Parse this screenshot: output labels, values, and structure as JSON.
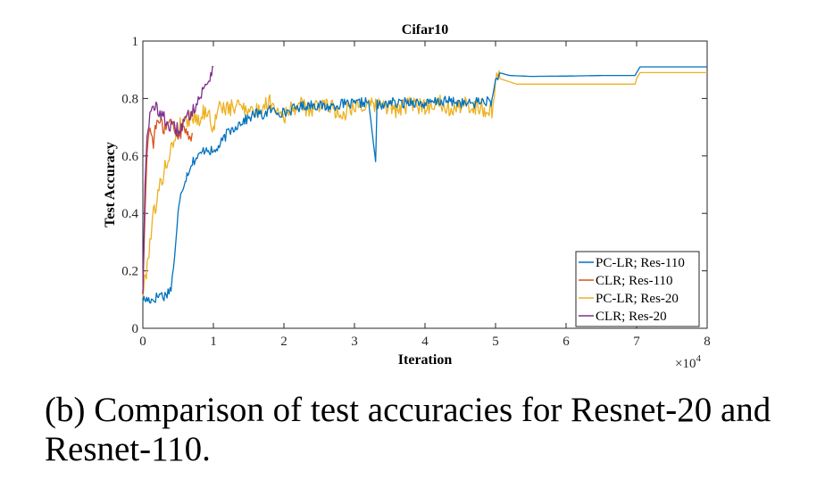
{
  "caption": {
    "line1": "(b) Comparison of test accuracies for Resnet-20 and",
    "line2": "Resnet-110."
  },
  "chart_data": {
    "type": "line",
    "title": "Cifar10",
    "xlabel": "Iteration",
    "ylabel": "Test Accuracy",
    "x_multiplier_label": "×10",
    "x_multiplier_exponent": "4",
    "xlim": [
      0,
      8
    ],
    "ylim": [
      0,
      1
    ],
    "xticks": [
      "0",
      "1",
      "2",
      "3",
      "4",
      "5",
      "6",
      "7",
      "8"
    ],
    "yticks": [
      "0",
      "0.2",
      "0.4",
      "0.6",
      "0.8",
      "1"
    ],
    "grid": false,
    "legend_position": "bottom-right",
    "series": [
      {
        "name": "PC-LR; Res-110",
        "color": "#0072BD",
        "x": [
          0,
          0.15,
          0.25,
          0.3,
          0.4,
          0.45,
          0.5,
          0.55,
          0.6,
          0.65,
          0.7,
          0.8,
          0.9,
          1.0,
          1.1,
          1.2,
          1.3,
          1.4,
          1.5,
          1.6,
          1.7,
          1.8,
          2.0,
          2.2,
          2.4,
          2.6,
          2.8,
          3.0,
          3.2,
          3.3,
          3.32,
          3.4,
          3.5,
          3.6,
          3.8,
          4.0,
          4.2,
          4.4,
          4.6,
          4.8,
          4.95,
          5.0,
          5.05,
          5.2,
          5.5,
          6.0,
          6.5,
          6.98,
          7.0,
          7.05,
          7.3,
          8.0
        ],
        "y": [
          0.1,
          0.1,
          0.12,
          0.11,
          0.14,
          0.25,
          0.4,
          0.48,
          0.52,
          0.55,
          0.58,
          0.6,
          0.63,
          0.61,
          0.64,
          0.68,
          0.7,
          0.72,
          0.73,
          0.75,
          0.74,
          0.76,
          0.75,
          0.77,
          0.78,
          0.77,
          0.78,
          0.78,
          0.79,
          0.58,
          0.78,
          0.77,
          0.79,
          0.78,
          0.79,
          0.78,
          0.79,
          0.79,
          0.78,
          0.79,
          0.79,
          0.86,
          0.89,
          0.88,
          0.877,
          0.878,
          0.88,
          0.88,
          0.89,
          0.91,
          0.91,
          0.91
        ]
      },
      {
        "name": "CLR; Res-110",
        "color": "#D95319",
        "x": [
          0,
          0.03,
          0.06,
          0.1,
          0.15,
          0.2,
          0.3,
          0.4,
          0.5,
          0.55,
          0.6,
          0.65,
          0.7
        ],
        "y": [
          0.12,
          0.4,
          0.62,
          0.7,
          0.65,
          0.72,
          0.7,
          0.72,
          0.66,
          0.69,
          0.7,
          0.66,
          0.68
        ]
      },
      {
        "name": "PC-LR; Res-20",
        "color": "#EDB120",
        "x": [
          0,
          0.05,
          0.1,
          0.15,
          0.2,
          0.3,
          0.4,
          0.5,
          0.6,
          0.7,
          0.8,
          0.9,
          1.0,
          1.1,
          1.2,
          1.4,
          1.6,
          1.8,
          2.0,
          2.2,
          2.4,
          2.6,
          2.8,
          3.0,
          3.2,
          3.4,
          3.6,
          3.8,
          4.0,
          4.2,
          4.4,
          4.6,
          4.8,
          4.95,
          5.0,
          5.05,
          5.3,
          5.6,
          6.0,
          6.5,
          6.98,
          7.0,
          7.05,
          7.4,
          8.0
        ],
        "y": [
          0.12,
          0.2,
          0.3,
          0.4,
          0.45,
          0.55,
          0.62,
          0.7,
          0.72,
          0.74,
          0.73,
          0.76,
          0.7,
          0.78,
          0.76,
          0.78,
          0.75,
          0.79,
          0.74,
          0.78,
          0.76,
          0.79,
          0.74,
          0.78,
          0.77,
          0.78,
          0.76,
          0.78,
          0.77,
          0.79,
          0.76,
          0.78,
          0.77,
          0.75,
          0.86,
          0.87,
          0.85,
          0.85,
          0.85,
          0.85,
          0.85,
          0.87,
          0.89,
          0.89,
          0.89
        ]
      },
      {
        "name": "CLR; Res-20",
        "color": "#7E2F8E",
        "x": [
          0,
          0.03,
          0.06,
          0.1,
          0.15,
          0.2,
          0.3,
          0.4,
          0.5,
          0.6,
          0.7,
          0.8,
          0.9,
          0.95,
          1.0
        ],
        "y": [
          0.12,
          0.5,
          0.68,
          0.74,
          0.76,
          0.77,
          0.73,
          0.7,
          0.69,
          0.72,
          0.76,
          0.8,
          0.85,
          0.88,
          0.91
        ]
      }
    ]
  }
}
